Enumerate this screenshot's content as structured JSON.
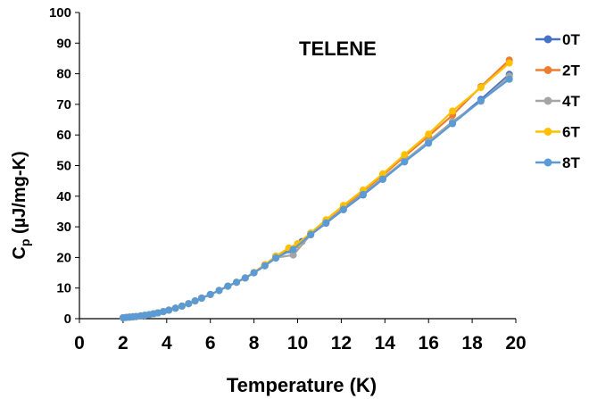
{
  "chart_data": {
    "type": "line",
    "title": "",
    "annotation": "TELENE",
    "xlabel": "Temperature (K)",
    "ylabel": {
      "main": "C",
      "sub": "p",
      "rest": " (µJ/mg-K)"
    },
    "xlim": [
      0,
      20
    ],
    "ylim": [
      0,
      100
    ],
    "xticks": [
      0,
      2,
      4,
      6,
      8,
      10,
      12,
      14,
      16,
      18,
      20
    ],
    "yticks": [
      0,
      10,
      20,
      30,
      40,
      50,
      60,
      70,
      80,
      90,
      100
    ],
    "grid": false,
    "legend_position": "right",
    "series": [
      {
        "name": "0T",
        "color": "#4472C4",
        "x": [
          2.0,
          2.15,
          2.3,
          2.45,
          2.6,
          2.8,
          3.0,
          3.2,
          3.4,
          3.6,
          3.85,
          4.1,
          4.4,
          4.7,
          5.0,
          5.3,
          5.6,
          6.0,
          6.4,
          6.8,
          7.2,
          7.6,
          8.0,
          8.5,
          9.0,
          9.6,
          10.2,
          10.6,
          11.3,
          12.1,
          13.0,
          13.9,
          14.9,
          16.0,
          17.1,
          18.4,
          19.7
        ],
        "y": [
          0.3,
          0.4,
          0.5,
          0.6,
          0.7,
          0.9,
          1.1,
          1.3,
          1.6,
          1.9,
          2.3,
          2.8,
          3.4,
          4.1,
          4.9,
          5.8,
          6.7,
          7.9,
          9.2,
          10.6,
          11.9,
          13.3,
          15.0,
          17.3,
          19.8,
          22.5,
          25.2,
          27.4,
          31.2,
          35.6,
          40.4,
          45.5,
          51.3,
          57.6,
          64.0,
          71.6,
          79.8
        ]
      },
      {
        "name": "2T",
        "color": "#ED7D31",
        "x": [
          2.0,
          2.15,
          2.3,
          2.45,
          2.6,
          2.8,
          3.0,
          3.2,
          3.4,
          3.6,
          3.85,
          4.1,
          4.4,
          4.7,
          5.0,
          5.3,
          5.6,
          6.0,
          6.4,
          6.8,
          7.2,
          7.6,
          8.0,
          8.5,
          9.0,
          9.6,
          10.0,
          10.6,
          11.3,
          12.1,
          13.0,
          13.9,
          14.9,
          16.0,
          17.1,
          18.4,
          19.7
        ],
        "y": [
          0.3,
          0.4,
          0.5,
          0.6,
          0.7,
          0.9,
          1.1,
          1.3,
          1.6,
          1.9,
          2.3,
          2.8,
          3.4,
          4.1,
          4.9,
          5.8,
          6.7,
          7.9,
          9.2,
          10.6,
          11.9,
          13.3,
          15.1,
          17.6,
          20.4,
          23.0,
          24.2,
          27.8,
          32.0,
          36.6,
          41.6,
          46.8,
          53.0,
          59.6,
          66.5,
          75.8,
          84.5
        ]
      },
      {
        "name": "4T",
        "color": "#A5A5A5",
        "x": [
          2.0,
          2.15,
          2.3,
          2.45,
          2.6,
          2.8,
          3.0,
          3.2,
          3.4,
          3.6,
          3.85,
          4.1,
          4.4,
          4.7,
          5.0,
          5.3,
          5.6,
          6.0,
          6.4,
          6.8,
          7.2,
          7.6,
          8.0,
          8.5,
          9.0,
          9.8,
          10.6,
          11.3,
          12.1,
          13.0,
          13.9,
          14.9,
          16.0,
          17.1,
          18.4,
          19.7
        ],
        "y": [
          0.3,
          0.4,
          0.5,
          0.6,
          0.7,
          0.9,
          1.1,
          1.3,
          1.6,
          1.9,
          2.3,
          2.8,
          3.4,
          4.1,
          4.9,
          5.8,
          6.7,
          7.9,
          9.2,
          10.6,
          11.9,
          13.3,
          15.0,
          17.3,
          19.9,
          20.8,
          27.5,
          31.5,
          35.9,
          40.8,
          45.9,
          51.6,
          57.9,
          64.4,
          71.0,
          79.2
        ]
      },
      {
        "name": "6T",
        "color": "#FFC000",
        "x": [
          2.0,
          2.15,
          2.3,
          2.45,
          2.6,
          2.8,
          3.0,
          3.2,
          3.4,
          3.6,
          3.85,
          4.1,
          4.4,
          4.7,
          5.0,
          5.3,
          5.6,
          6.0,
          6.4,
          6.8,
          7.2,
          7.6,
          8.0,
          8.5,
          9.0,
          9.6,
          10.0,
          10.6,
          11.3,
          12.1,
          13.0,
          13.9,
          14.9,
          16.0,
          17.1,
          18.4,
          19.7
        ],
        "y": [
          0.3,
          0.4,
          0.5,
          0.6,
          0.7,
          0.9,
          1.1,
          1.3,
          1.6,
          1.9,
          2.3,
          2.8,
          3.4,
          4.1,
          4.9,
          5.8,
          6.7,
          7.9,
          9.2,
          10.6,
          11.9,
          13.3,
          15.1,
          17.6,
          20.4,
          23.1,
          24.5,
          28.0,
          32.3,
          37.0,
          42.0,
          47.3,
          53.6,
          60.3,
          67.8,
          75.5,
          83.5
        ]
      },
      {
        "name": "8T",
        "color": "#5B9BD5",
        "x": [
          2.0,
          2.15,
          2.3,
          2.45,
          2.6,
          2.8,
          3.0,
          3.2,
          3.4,
          3.6,
          3.85,
          4.1,
          4.4,
          4.7,
          5.0,
          5.3,
          5.6,
          6.0,
          6.4,
          6.8,
          7.2,
          7.6,
          8.0,
          8.5,
          9.0,
          9.8,
          10.6,
          11.3,
          12.1,
          13.0,
          13.9,
          14.9,
          16.0,
          17.1,
          18.4,
          19.7
        ],
        "y": [
          0.3,
          0.4,
          0.5,
          0.6,
          0.7,
          0.9,
          1.1,
          1.3,
          1.6,
          1.9,
          2.3,
          2.8,
          3.4,
          4.1,
          4.9,
          5.8,
          6.7,
          7.9,
          9.2,
          10.6,
          11.9,
          13.3,
          15.0,
          17.3,
          19.9,
          22.6,
          27.5,
          31.3,
          35.7,
          40.6,
          45.6,
          51.2,
          57.3,
          63.7,
          71.2,
          78.2
        ]
      }
    ]
  }
}
